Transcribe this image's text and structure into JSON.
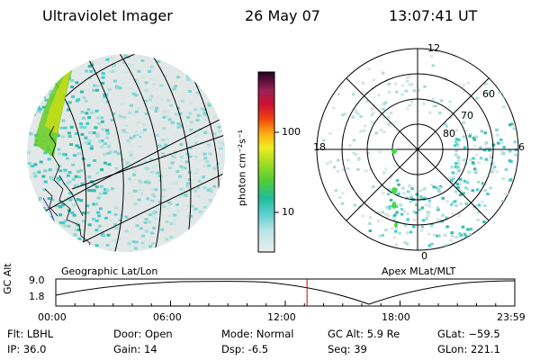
{
  "header": {
    "instrument": "Ultraviolet Imager",
    "date": "26 May 07",
    "time": "13:07:41 UT"
  },
  "colorbar": {
    "unit_label": "photon cm⁻²s⁻¹",
    "ticks": [
      "100",
      "10"
    ]
  },
  "geo_panel": {
    "label": "Geographic Lat/Lon"
  },
  "polar_panel": {
    "label": "Apex MLat/MLT",
    "mlt_labels": [
      "12",
      "18",
      "6",
      "0"
    ],
    "lat_labels": [
      "60",
      "70",
      "80"
    ]
  },
  "timeline": {
    "y_axis_label": "GC Alt",
    "y_ticks": [
      "9.0",
      "1.8"
    ],
    "x_ticks": [
      "00:00",
      "06:00",
      "12:00",
      "18:00",
      "23:59"
    ],
    "cursor_time": "13:07:41"
  },
  "status": {
    "filter": "Flt: LBHL",
    "ip": "IP: 36.0",
    "door": "Door: Open",
    "gain": "Gain: 14",
    "mode": "Mode: Normal",
    "dsp": "Dsp:    -6.5",
    "gc_alt": "GC Alt: 5.9 Re",
    "seq": "Seq: 39",
    "glat": "GLat: −59.5",
    "glon": "GLon: 221.1"
  },
  "colors": {
    "background": "#ffffff",
    "cursor": "#cc0000",
    "emission_low": "#9fd8d0",
    "emission_mid": "#22cccc",
    "emission_high": "#66dd22"
  }
}
